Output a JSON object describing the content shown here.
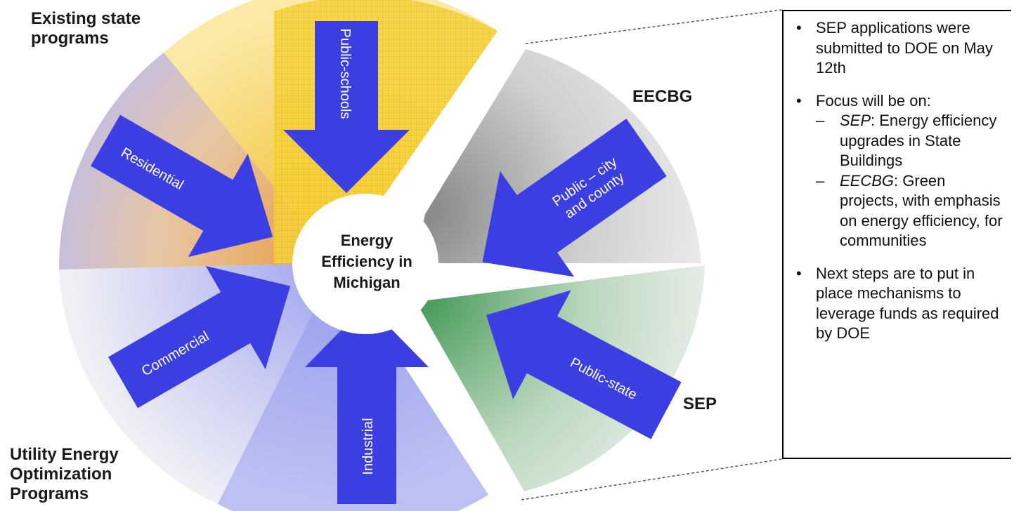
{
  "center": {
    "line1": "Energy",
    "line2": "Efficiency in",
    "line3": "Michigan"
  },
  "groups": {
    "existing": "Existing state\nprograms",
    "utility": "Utility Energy\nOptimization\nPrograms",
    "eecbg": "EECBG",
    "sep": "SEP"
  },
  "arrows": {
    "public_schools": "Public-schools",
    "residential": "Residential",
    "commercial": "Commercial",
    "industrial": "Industrial",
    "public_city_line1": "Public – city",
    "public_city_line2": "and county",
    "public_state": "Public-state"
  },
  "notes": {
    "bullet_glyph": "•",
    "dash_glyph": "–",
    "b1": "SEP applications were submitted to DOE on May 12th",
    "b2": "Focus will be on:",
    "s1_term": "SEP",
    "s1_text": ": Energy efficiency upgrades in State Buildings",
    "s2_term": "EECBG",
    "s2_text": ": Green projects, with emphasis on energy efficiency, for communities",
    "b3": "Next steps are to put in place mechanisms to leverage funds as required by DOE"
  },
  "colors": {
    "arrow_fill": "#3b3ee0",
    "existing_yellow": "#f3c62a",
    "utility_lavender": "#b3b8f0",
    "eecbg_gray": "#a8a8a8",
    "sep_green": "#5aa86c"
  }
}
